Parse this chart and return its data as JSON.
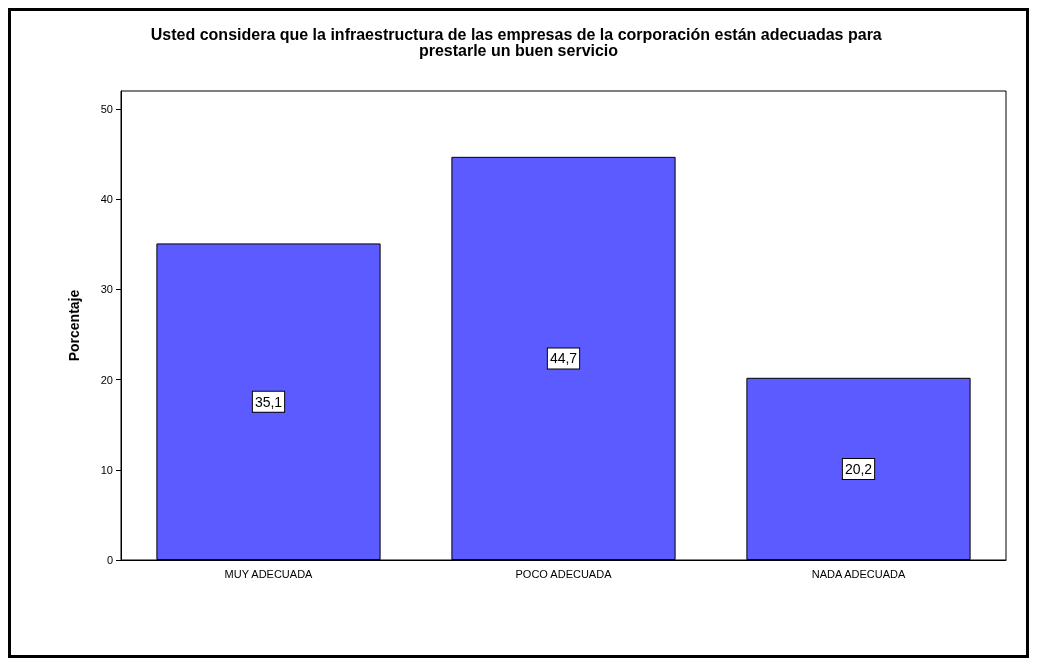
{
  "chart_data": {
    "type": "bar",
    "title": "Usted considera que la infraestructura de las empresas de la corporación están adecuadas para prestarle un buen servicio",
    "ylabel": "Porcentaje",
    "categories": [
      "MUY ADECUADA",
      "POCO ADECUADA",
      "NADA ADECUADA"
    ],
    "values": [
      35.1,
      44.7,
      20.2
    ],
    "value_labels": [
      "35,1",
      "44,7",
      "20,2"
    ],
    "color": "#5b5bff",
    "ylim": [
      0,
      52
    ],
    "yticks": [
      0,
      10,
      20,
      30,
      40,
      50
    ],
    "grid": false
  }
}
